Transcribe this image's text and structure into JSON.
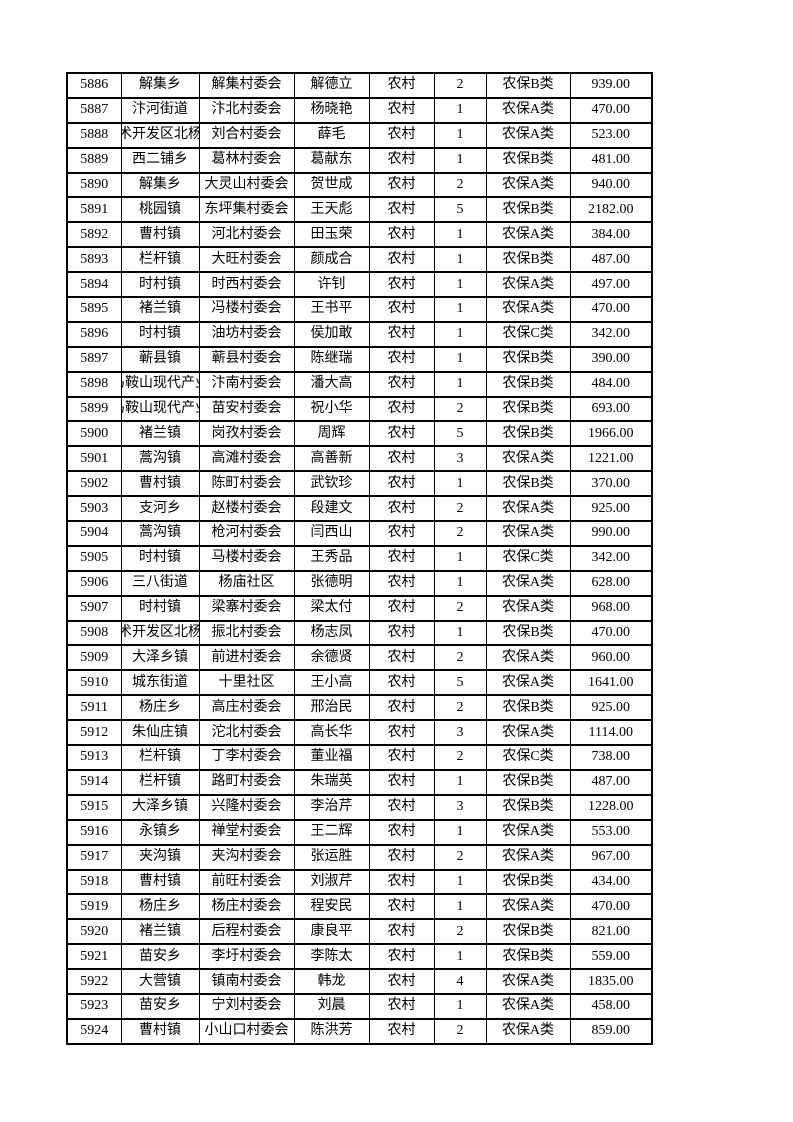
{
  "page": {
    "background_color": "#ffffff",
    "text_color": "#000000",
    "border_color": "#000000"
  },
  "table": {
    "column_keys": [
      "record-id",
      "township",
      "village-committee",
      "person-name",
      "residence-type",
      "person-count",
      "insurance-category",
      "amount"
    ],
    "rows": [
      [
        "5886",
        "解集乡",
        "解集村委会",
        "解德立",
        "农村",
        "2",
        "农保B类",
        "939.00"
      ],
      [
        "5887",
        "汴河街道",
        "汴北村委会",
        "杨晓艳",
        "农村",
        "1",
        "农保A类",
        "470.00"
      ],
      [
        "5888",
        "技术开发区北杨寨",
        "刘合村委会",
        "薛毛",
        "农村",
        "1",
        "农保A类",
        "523.00"
      ],
      [
        "5889",
        "西二铺乡",
        "葛林村委会",
        "葛献东",
        "农村",
        "1",
        "农保B类",
        "481.00"
      ],
      [
        "5890",
        "解集乡",
        "大灵山村委会",
        "贺世成",
        "农村",
        "2",
        "农保A类",
        "940.00"
      ],
      [
        "5891",
        "桃园镇",
        "东坪集村委会",
        "王天彪",
        "农村",
        "5",
        "农保B类",
        "2182.00"
      ],
      [
        "5892",
        "曹村镇",
        "河北村委会",
        "田玉荣",
        "农村",
        "1",
        "农保A类",
        "384.00"
      ],
      [
        "5893",
        "栏杆镇",
        "大旺村委会",
        "颜成合",
        "农村",
        "1",
        "农保B类",
        "487.00"
      ],
      [
        "5894",
        "时村镇",
        "时西村委会",
        "许钊",
        "农村",
        "1",
        "农保A类",
        "497.00"
      ],
      [
        "5895",
        "褚兰镇",
        "冯楼村委会",
        "王书平",
        "农村",
        "1",
        "农保A类",
        "470.00"
      ],
      [
        "5896",
        "时村镇",
        "油坊村委会",
        "侯加敢",
        "农村",
        "1",
        "农保C类",
        "342.00"
      ],
      [
        "5897",
        "蕲县镇",
        "蕲县村委会",
        "陈继瑞",
        "农村",
        "1",
        "农保B类",
        "390.00"
      ],
      [
        "5898",
        "马鞍山现代产业",
        "汴南村委会",
        "潘大高",
        "农村",
        "1",
        "农保B类",
        "484.00"
      ],
      [
        "5899",
        "马鞍山现代产业",
        "苗安村委会",
        "祝小华",
        "农村",
        "2",
        "农保B类",
        "693.00"
      ],
      [
        "5900",
        "褚兰镇",
        "岗孜村委会",
        "周辉",
        "农村",
        "5",
        "农保B类",
        "1966.00"
      ],
      [
        "5901",
        "蒿沟镇",
        "高滩村委会",
        "高善新",
        "农村",
        "3",
        "农保A类",
        "1221.00"
      ],
      [
        "5902",
        "曹村镇",
        "陈町村委会",
        "武钦珍",
        "农村",
        "1",
        "农保B类",
        "370.00"
      ],
      [
        "5903",
        "支河乡",
        "赵楼村委会",
        "段建文",
        "农村",
        "2",
        "农保A类",
        "925.00"
      ],
      [
        "5904",
        "蒿沟镇",
        "枪河村委会",
        "闫西山",
        "农村",
        "2",
        "农保A类",
        "990.00"
      ],
      [
        "5905",
        "时村镇",
        "马楼村委会",
        "王秀品",
        "农村",
        "1",
        "农保C类",
        "342.00"
      ],
      [
        "5906",
        "三八街道",
        "杨庙社区",
        "张德明",
        "农村",
        "1",
        "农保A类",
        "628.00"
      ],
      [
        "5907",
        "时村镇",
        "梁寨村委会",
        "梁太付",
        "农村",
        "2",
        "农保A类",
        "968.00"
      ],
      [
        "5908",
        "技术开发区北杨寨",
        "振北村委会",
        "杨志凤",
        "农村",
        "1",
        "农保B类",
        "470.00"
      ],
      [
        "5909",
        "大泽乡镇",
        "前进村委会",
        "余德贤",
        "农村",
        "2",
        "农保A类",
        "960.00"
      ],
      [
        "5910",
        "城东街道",
        "十里社区",
        "王小高",
        "农村",
        "5",
        "农保A类",
        "1641.00"
      ],
      [
        "5911",
        "杨庄乡",
        "高庄村委会",
        "邢治民",
        "农村",
        "2",
        "农保B类",
        "925.00"
      ],
      [
        "5912",
        "朱仙庄镇",
        "沱北村委会",
        "高长华",
        "农村",
        "3",
        "农保A类",
        "1114.00"
      ],
      [
        "5913",
        "栏杆镇",
        "丁李村委会",
        "董业福",
        "农村",
        "2",
        "农保C类",
        "738.00"
      ],
      [
        "5914",
        "栏杆镇",
        "路町村委会",
        "朱瑞英",
        "农村",
        "1",
        "农保B类",
        "487.00"
      ],
      [
        "5915",
        "大泽乡镇",
        "兴隆村委会",
        "李治芹",
        "农村",
        "3",
        "农保B类",
        "1228.00"
      ],
      [
        "5916",
        "永镇乡",
        "禅堂村委会",
        "王二辉",
        "农村",
        "1",
        "农保A类",
        "553.00"
      ],
      [
        "5917",
        "夹沟镇",
        "夹沟村委会",
        "张运胜",
        "农村",
        "2",
        "农保A类",
        "967.00"
      ],
      [
        "5918",
        "曹村镇",
        "前旺村委会",
        "刘淑芹",
        "农村",
        "1",
        "农保B类",
        "434.00"
      ],
      [
        "5919",
        "杨庄乡",
        "杨庄村委会",
        "程安民",
        "农村",
        "1",
        "农保A类",
        "470.00"
      ],
      [
        "5920",
        "褚兰镇",
        "后程村委会",
        "康良平",
        "农村",
        "2",
        "农保B类",
        "821.00"
      ],
      [
        "5921",
        "苗安乡",
        "李圩村委会",
        "李陈太",
        "农村",
        "1",
        "农保B类",
        "559.00"
      ],
      [
        "5922",
        "大营镇",
        "镇南村委会",
        "韩龙",
        "农村",
        "4",
        "农保A类",
        "1835.00"
      ],
      [
        "5923",
        "苗安乡",
        "宁刘村委会",
        "刘晨",
        "农村",
        "1",
        "农保A类",
        "458.00"
      ],
      [
        "5924",
        "曹村镇",
        "小山口村委会",
        "陈洪芳",
        "农村",
        "2",
        "农保A类",
        "859.00"
      ]
    ]
  }
}
